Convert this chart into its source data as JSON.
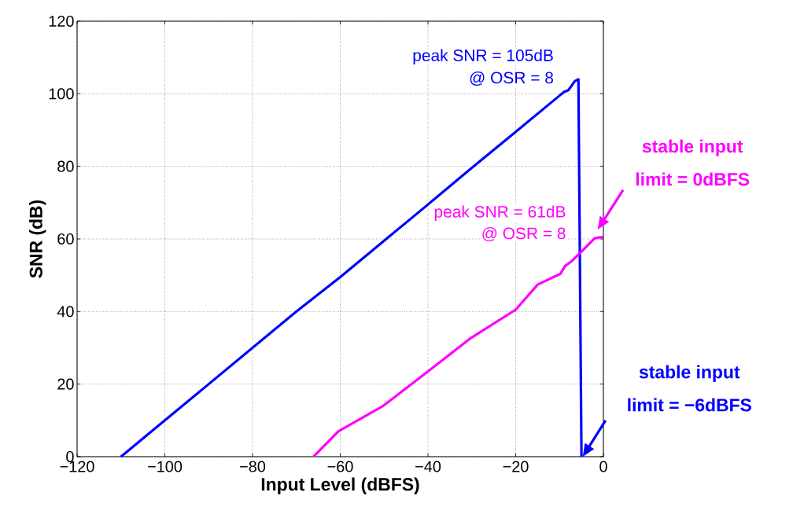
{
  "chart_data": {
    "type": "line",
    "xlabel": "Input Level (dBFS)",
    "ylabel": "SNR (dB)",
    "xlim": [
      -120,
      0
    ],
    "ylim": [
      0,
      120
    ],
    "xticks": [
      {
        "value": -120,
        "label": "−120"
      },
      {
        "value": -100,
        "label": "−100"
      },
      {
        "value": -80,
        "label": "−80"
      },
      {
        "value": -60,
        "label": "−60"
      },
      {
        "value": -40,
        "label": "−40"
      },
      {
        "value": -20,
        "label": "−20"
      },
      0
    ],
    "yticks": [
      0,
      20,
      40,
      60,
      80,
      100,
      120
    ],
    "grid": true,
    "line_style": "solid",
    "series": [
      {
        "color": "#0000ff",
        "x": [
          -110,
          -100,
          -90,
          -80,
          -70,
          -60,
          -50,
          -40,
          -30,
          -20,
          -10,
          -9,
          -8,
          -6.5,
          -5.7,
          -5
        ],
        "values": [
          0,
          10,
          20,
          30,
          40,
          49.5,
          59.5,
          69.5,
          79.6,
          89.5,
          99.5,
          100.5,
          101,
          103.5,
          104,
          0
        ]
      },
      {
        "color": "#ff00ff",
        "x": [
          -66.1,
          -60.4,
          -50.2,
          -40,
          -30.1,
          -20,
          -15,
          -9.8,
          -8.7,
          -7.4,
          -5,
          -2,
          0
        ],
        "values": [
          0,
          7,
          14,
          23.5,
          32.8,
          40.5,
          47.4,
          50.4,
          52.6,
          53.7,
          56.5,
          60.2,
          60.6
        ]
      }
    ],
    "annotations": [
      "peak SNR = 105dB",
      "@ OSR = 8",
      "peak SNR = 61dB",
      "@ OSR = 8",
      "stable input",
      "limit = 0dBFS",
      "stable input",
      "limit = −6dBFS"
    ]
  }
}
